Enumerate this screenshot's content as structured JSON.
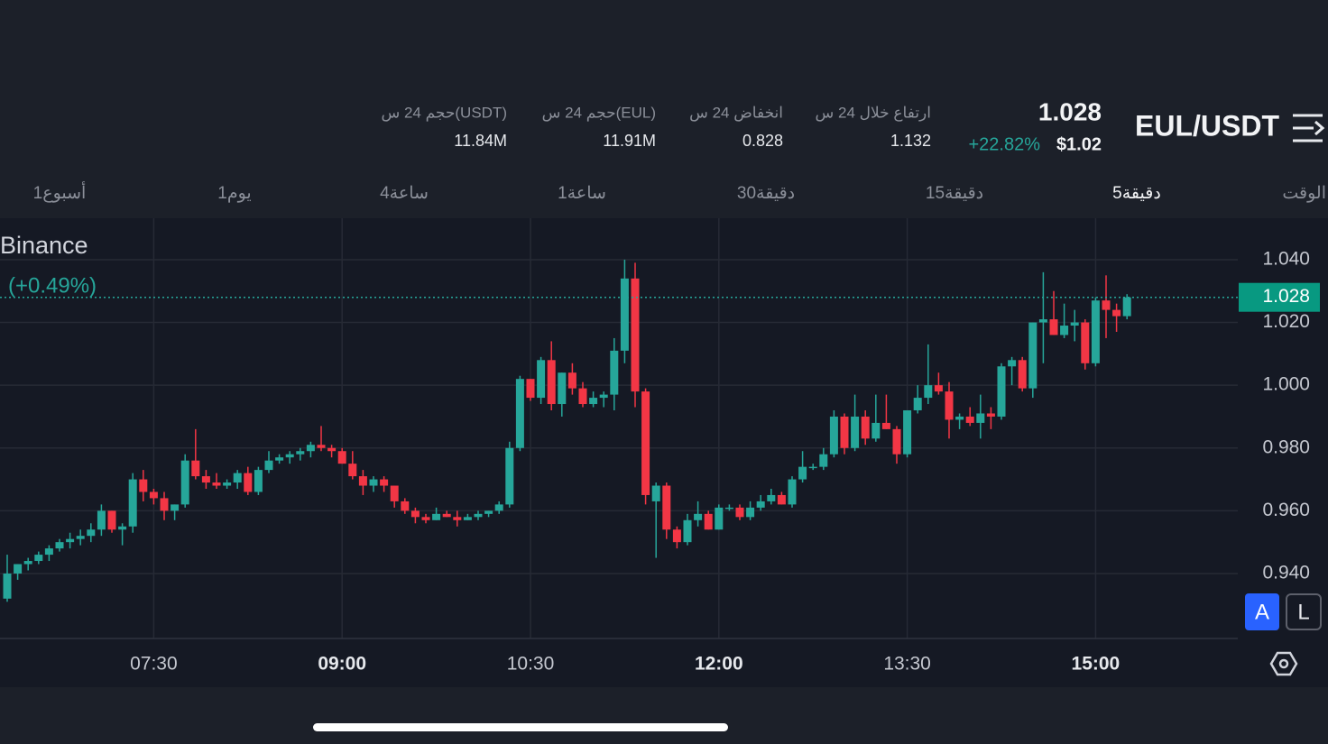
{
  "header": {
    "pair": "EUL/USDT",
    "price": "1.028",
    "usd_price": "$1.02",
    "change": "+22.82%",
    "stats": [
      {
        "label": "ارتفاع خلال 24 س",
        "value": "1.132"
      },
      {
        "label": "انخفاض 24 س",
        "value": "0.828"
      },
      {
        "label": "حجم 24 س(EUL)",
        "value": "11.91M"
      },
      {
        "label": "حجم 24 س(USDT)",
        "value": "11.84M"
      }
    ]
  },
  "timeframes": [
    "الوقت",
    "5دقيقة",
    "15دقيقة",
    "30دقيقة",
    "1ساعة",
    "4ساعة",
    "1يوم",
    "1أسبوع"
  ],
  "buttons": [
    "A",
    "L"
  ],
  "chart_data": {
    "type": "candlestick",
    "source": "Binance",
    "source_change": "(+0.49%)",
    "last_price": 1.028,
    "last_price_label": "1.028",
    "up_color": "#26a69a",
    "down_color": "#f23645",
    "ylim": [
      0.9193,
      1.0532
    ],
    "yticks": [
      {
        "value": 0.94,
        "label": "0.940"
      },
      {
        "value": 0.96,
        "label": "0.960"
      },
      {
        "value": 0.98,
        "label": "0.980"
      },
      {
        "value": 1.0,
        "label": "1.000"
      },
      {
        "value": 1.02,
        "label": "1.020"
      },
      {
        "value": 1.04,
        "label": "1.040"
      }
    ],
    "grid": true,
    "categories": [
      null,
      null,
      null,
      null,
      null,
      null,
      null,
      null,
      null,
      null,
      null,
      null,
      null,
      null,
      "07:30",
      null,
      null,
      null,
      null,
      null,
      null,
      null,
      null,
      null,
      null,
      null,
      null,
      null,
      null,
      null,
      null,
      null,
      "09:00",
      null,
      null,
      null,
      null,
      null,
      null,
      null,
      null,
      null,
      null,
      null,
      null,
      null,
      null,
      null,
      null,
      null,
      "10:30",
      null,
      null,
      null,
      null,
      null,
      null,
      null,
      null,
      null,
      null,
      null,
      null,
      null,
      null,
      null,
      null,
      null,
      "12:00",
      null,
      null,
      null,
      null,
      null,
      null,
      null,
      null,
      null,
      null,
      null,
      null,
      null,
      null,
      null,
      null,
      null,
      "13:30",
      null,
      null,
      null,
      null,
      null,
      null,
      null,
      null,
      null,
      null,
      null,
      null,
      null,
      null,
      null,
      null,
      null,
      "15:00",
      null,
      null,
      null
    ],
    "open": [
      0.932,
      0.94,
      0.943,
      0.944,
      0.946,
      0.948,
      0.95,
      0.951,
      0.952,
      0.954,
      0.96,
      0.954,
      0.955,
      0.97,
      0.966,
      0.964,
      0.96,
      0.962,
      0.976,
      0.971,
      0.969,
      0.968,
      0.969,
      0.972,
      0.966,
      0.973,
      0.976,
      0.977,
      0.978,
      0.979,
      0.981,
      0.98,
      0.979,
      0.975,
      0.971,
      0.968,
      0.97,
      0.968,
      0.963,
      0.96,
      0.958,
      0.957,
      0.959,
      0.958,
      0.957,
      0.958,
      0.959,
      0.96,
      0.962,
      0.98,
      1.002,
      0.996,
      1.008,
      0.994,
      1.004,
      0.999,
      0.994,
      0.996,
      0.997,
      1.011,
      1.034,
      0.998,
      0.963,
      0.968,
      0.954,
      0.95,
      0.957,
      0.959,
      0.954,
      0.961,
      0.961,
      0.958,
      0.961,
      0.963,
      0.965,
      0.962,
      0.97,
      0.974,
      0.974,
      0.978,
      0.99,
      0.98,
      0.99,
      0.983,
      0.988,
      0.986,
      0.978,
      0.992,
      0.996,
      1.0,
      0.998,
      0.989,
      0.99,
      0.988,
      0.991,
      0.99,
      1.006,
      1.008,
      0.999,
      1.02,
      1.021,
      1.016,
      1.019,
      1.02,
      1.007,
      1.027,
      1.024,
      1.022
    ],
    "high": [
      0.946,
      0.943,
      0.945,
      0.947,
      0.949,
      0.951,
      0.953,
      0.954,
      0.956,
      0.962,
      0.96,
      0.956,
      0.972,
      0.973,
      0.967,
      0.966,
      0.962,
      0.978,
      0.986,
      0.973,
      0.972,
      0.97,
      0.973,
      0.974,
      0.974,
      0.979,
      0.978,
      0.979,
      0.98,
      0.982,
      0.987,
      0.981,
      0.98,
      0.979,
      0.973,
      0.971,
      0.971,
      0.968,
      0.964,
      0.961,
      0.959,
      0.961,
      0.96,
      0.96,
      0.959,
      0.96,
      0.96,
      0.963,
      0.982,
      1.003,
      1.002,
      1.009,
      1.014,
      1.004,
      1.007,
      1.001,
      0.998,
      0.998,
      1.015,
      1.04,
      1.039,
      0.999,
      0.969,
      0.969,
      0.955,
      0.959,
      0.963,
      0.96,
      0.962,
      0.962,
      0.962,
      0.963,
      0.965,
      0.967,
      0.966,
      0.971,
      0.979,
      0.975,
      0.98,
      0.992,
      0.991,
      0.997,
      0.992,
      0.997,
      0.997,
      0.987,
      0.992,
      1.0,
      1.013,
      1.004,
      1.001,
      0.991,
      0.993,
      0.997,
      0.993,
      1.007,
      1.009,
      1.009,
      1.02,
      1.036,
      1.03,
      1.026,
      1.024,
      1.021,
      1.028,
      1.035,
      1.026,
      1.029
    ],
    "low": [
      0.931,
      0.938,
      0.941,
      0.943,
      0.944,
      0.947,
      0.948,
      0.949,
      0.95,
      0.952,
      0.953,
      0.949,
      0.953,
      0.963,
      0.962,
      0.957,
      0.957,
      0.961,
      0.97,
      0.967,
      0.967,
      0.967,
      0.967,
      0.965,
      0.965,
      0.972,
      0.975,
      0.975,
      0.976,
      0.977,
      0.979,
      0.977,
      0.975,
      0.97,
      0.965,
      0.966,
      0.966,
      0.961,
      0.959,
      0.956,
      0.956,
      0.957,
      0.958,
      0.955,
      0.957,
      0.957,
      0.958,
      0.959,
      0.961,
      0.979,
      0.995,
      0.994,
      0.992,
      0.99,
      0.997,
      0.993,
      0.993,
      0.993,
      0.992,
      1.007,
      0.993,
      0.962,
      0.945,
      0.951,
      0.948,
      0.949,
      0.955,
      0.954,
      0.954,
      0.96,
      0.957,
      0.957,
      0.96,
      0.962,
      0.962,
      0.961,
      0.969,
      0.973,
      0.973,
      0.977,
      0.978,
      0.979,
      0.981,
      0.982,
      0.986,
      0.975,
      0.977,
      0.991,
      0.994,
      0.997,
      0.983,
      0.986,
      0.987,
      0.983,
      0.986,
      0.989,
      1.0,
      0.998,
      0.996,
      1.007,
      1.016,
      1.015,
      1.014,
      1.005,
      1.006,
      1.015,
      1.017,
      1.021
    ],
    "close": [
      0.94,
      0.943,
      0.944,
      0.946,
      0.948,
      0.95,
      0.951,
      0.952,
      0.954,
      0.96,
      0.954,
      0.955,
      0.97,
      0.966,
      0.964,
      0.96,
      0.962,
      0.976,
      0.971,
      0.969,
      0.968,
      0.969,
      0.972,
      0.966,
      0.973,
      0.976,
      0.977,
      0.978,
      0.979,
      0.981,
      0.98,
      0.979,
      0.975,
      0.971,
      0.968,
      0.97,
      0.968,
      0.963,
      0.96,
      0.958,
      0.957,
      0.959,
      0.958,
      0.957,
      0.958,
      0.959,
      0.96,
      0.962,
      0.98,
      1.002,
      0.996,
      1.008,
      0.994,
      1.004,
      0.999,
      0.994,
      0.996,
      0.997,
      1.011,
      1.034,
      0.998,
      0.965,
      0.968,
      0.954,
      0.95,
      0.957,
      0.959,
      0.954,
      0.961,
      0.961,
      0.958,
      0.961,
      0.963,
      0.965,
      0.962,
      0.97,
      0.974,
      0.974,
      0.978,
      0.99,
      0.98,
      0.99,
      0.983,
      0.988,
      0.986,
      0.978,
      0.992,
      0.996,
      1.0,
      0.998,
      0.989,
      0.99,
      0.988,
      0.991,
      0.99,
      1.006,
      1.008,
      0.999,
      1.02,
      1.021,
      1.016,
      1.019,
      1.02,
      1.007,
      1.027,
      1.024,
      1.022,
      1.028
    ]
  }
}
